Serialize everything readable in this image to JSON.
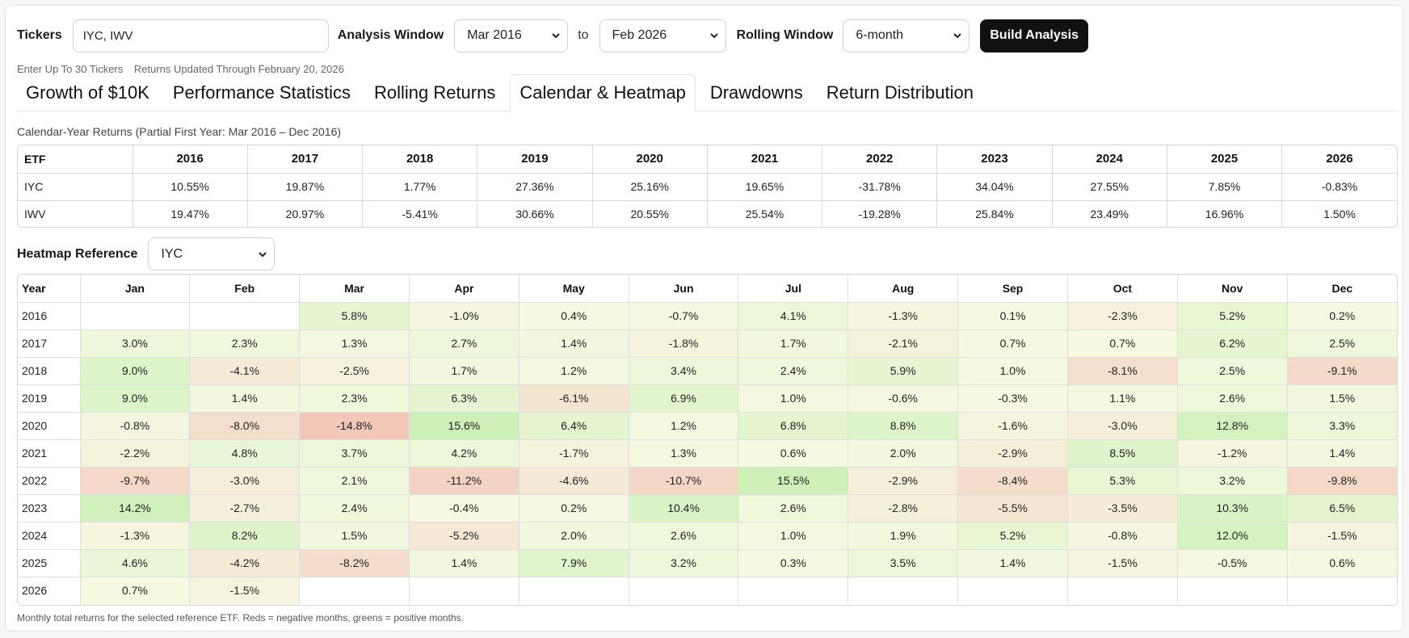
{
  "controls": {
    "tickers_label": "Tickers",
    "tickers_value": "IYC, IWV",
    "window_label": "Analysis Window",
    "start_value": "Mar 2016",
    "to_label": "to",
    "end_value": "Feb 2026",
    "rolling_label": "Rolling Window",
    "rolling_value": "6-month",
    "build_label": "Build Analysis"
  },
  "hint": {
    "limit": "Enter Up To 30 Tickers",
    "updated": "Returns Updated Through February 20, 2026"
  },
  "tabs": [
    "Growth of $10K",
    "Performance Statistics",
    "Rolling Returns",
    "Calendar & Heatmap",
    "Drawdowns",
    "Return Distribution"
  ],
  "active_tab": "Calendar & Heatmap",
  "calendar": {
    "caption": "Calendar-Year Returns (Partial First Year: Mar 2016 – Dec 2016)",
    "header_first": "ETF",
    "years": [
      "2016",
      "2017",
      "2018",
      "2019",
      "2020",
      "2021",
      "2022",
      "2023",
      "2024",
      "2025",
      "2026"
    ],
    "rows": [
      {
        "etf": "IYC",
        "values": [
          "10.55%",
          "19.87%",
          "1.77%",
          "27.36%",
          "25.16%",
          "19.65%",
          "-31.78%",
          "34.04%",
          "27.55%",
          "7.85%",
          "-0.83%"
        ]
      },
      {
        "etf": "IWV",
        "values": [
          "19.47%",
          "20.97%",
          "-5.41%",
          "30.66%",
          "20.55%",
          "25.54%",
          "-19.28%",
          "25.84%",
          "23.49%",
          "16.96%",
          "1.50%"
        ]
      }
    ]
  },
  "heatmap": {
    "reference_label": "Heatmap Reference",
    "reference_value": "IYC",
    "header_first": "Year",
    "months": [
      "Jan",
      "Feb",
      "Mar",
      "Apr",
      "May",
      "Jun",
      "Jul",
      "Aug",
      "Sep",
      "Oct",
      "Nov",
      "Dec"
    ],
    "rows": [
      {
        "year": "2016",
        "values": [
          null,
          null,
          5.8,
          -1.0,
          0.4,
          -0.7,
          4.1,
          -1.3,
          0.1,
          -2.3,
          5.2,
          0.2
        ]
      },
      {
        "year": "2017",
        "values": [
          3.0,
          2.3,
          1.3,
          2.7,
          1.4,
          -1.8,
          1.7,
          -2.1,
          0.7,
          0.7,
          6.2,
          2.5
        ]
      },
      {
        "year": "2018",
        "values": [
          9.0,
          -4.1,
          -2.5,
          1.7,
          1.2,
          3.4,
          2.4,
          5.9,
          1.0,
          -8.1,
          2.5,
          -9.1
        ]
      },
      {
        "year": "2019",
        "values": [
          9.0,
          1.4,
          2.3,
          6.3,
          -6.1,
          6.9,
          1.0,
          -0.6,
          -0.3,
          1.1,
          2.6,
          1.5
        ]
      },
      {
        "year": "2020",
        "values": [
          -0.8,
          -8.0,
          -14.8,
          15.6,
          6.4,
          1.2,
          6.8,
          8.8,
          -1.6,
          -3.0,
          12.8,
          3.3
        ]
      },
      {
        "year": "2021",
        "values": [
          -2.2,
          4.8,
          3.7,
          4.2,
          -1.7,
          1.3,
          0.6,
          2.0,
          -2.9,
          8.5,
          -1.2,
          1.4
        ]
      },
      {
        "year": "2022",
        "values": [
          -9.7,
          -3.0,
          2.1,
          -11.2,
          -4.6,
          -10.7,
          15.5,
          -2.9,
          -8.4,
          5.3,
          3.2,
          -9.8
        ]
      },
      {
        "year": "2023",
        "values": [
          14.2,
          -2.7,
          2.4,
          -0.4,
          0.2,
          10.4,
          2.6,
          -2.8,
          -5.5,
          -3.5,
          10.3,
          6.5
        ]
      },
      {
        "year": "2024",
        "values": [
          -1.3,
          8.2,
          1.5,
          -5.2,
          2.0,
          2.6,
          1.0,
          1.9,
          5.2,
          -0.8,
          12.0,
          -1.5
        ]
      },
      {
        "year": "2025",
        "values": [
          4.6,
          -4.2,
          -8.2,
          1.4,
          7.9,
          3.2,
          0.3,
          3.5,
          1.4,
          -1.5,
          -0.5,
          0.6
        ]
      },
      {
        "year": "2026",
        "values": [
          0.7,
          -1.5,
          null,
          null,
          null,
          null,
          null,
          null,
          null,
          null,
          null,
          null
        ]
      }
    ],
    "footnote": "Monthly total returns for the selected reference ETF. Reds = negative months, greens = positive months."
  },
  "icons": {
    "select": "chevron-down-icon"
  }
}
